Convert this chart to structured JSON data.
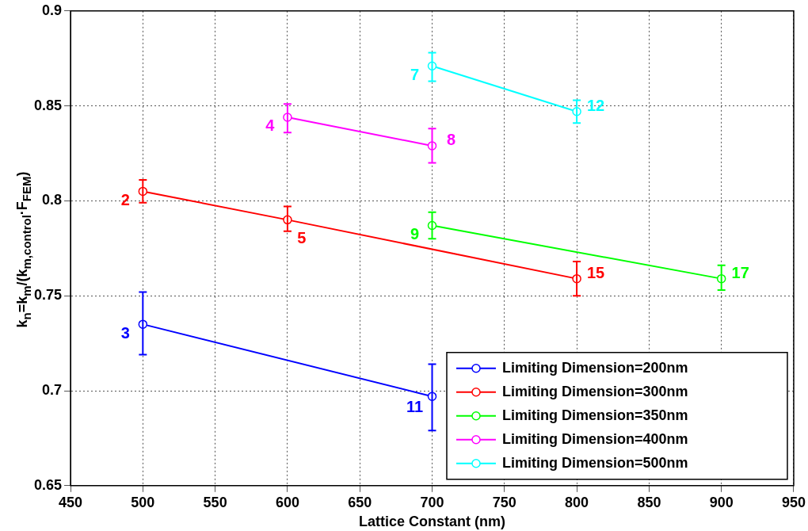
{
  "chart_data": {
    "type": "line",
    "xlabel": "Lattice Constant (nm)",
    "ylabel": "k$_{n}$=k$_{m}$/(k$_{m,control}$·F$_{FEM}$)",
    "xlim": [
      450,
      950
    ],
    "xticks": [
      450,
      500,
      550,
      600,
      650,
      700,
      750,
      800,
      850,
      900,
      950
    ],
    "ylim": [
      0.65,
      0.9
    ],
    "yticks": [
      0.65,
      0.7,
      0.75,
      0.8,
      0.85,
      0.9
    ],
    "grid": true,
    "legend": "bottom right",
    "marker": "circle",
    "line_style": "solid",
    "series": [
      {
        "name": "Limiting Dimension=200nm",
        "color": "#0000ff",
        "x": [
          500,
          700
        ],
        "values": [
          0.735,
          0.697
        ],
        "errors": [
          [
            0.719,
            0.752
          ],
          [
            0.679,
            0.714
          ]
        ]
      },
      {
        "name": "Limiting Dimension=300nm",
        "color": "#ff0000",
        "x": [
          500,
          600,
          800
        ],
        "values": [
          0.805,
          0.79,
          0.759
        ],
        "errors": [
          [
            0.799,
            0.811
          ],
          [
            0.784,
            0.797
          ],
          [
            0.75,
            0.768
          ]
        ]
      },
      {
        "name": "Limiting Dimension=350nm",
        "color": "#00ff00",
        "x": [
          700,
          900
        ],
        "values": [
          0.787,
          0.759
        ],
        "errors": [
          [
            0.78,
            0.794
          ],
          [
            0.753,
            0.766
          ]
        ]
      },
      {
        "name": "Limiting Dimension=400nm",
        "color": "#ff00ff",
        "x": [
          600,
          700
        ],
        "values": [
          0.844,
          0.829
        ],
        "errors": [
          [
            0.836,
            0.851
          ],
          [
            0.82,
            0.838
          ]
        ]
      },
      {
        "name": "Limiting Dimension=500nm",
        "color": "#00ffff",
        "x": [
          700,
          800
        ],
        "values": [
          0.871,
          0.847
        ],
        "errors": [
          [
            0.863,
            0.878
          ],
          [
            0.841,
            0.853
          ]
        ]
      }
    ],
    "annotations": [
      {
        "text": "3",
        "x": 500,
        "y": 0.735
      },
      {
        "text": "11",
        "x": 700,
        "y": 0.697
      },
      {
        "text": "2",
        "x": 500,
        "y": 0.805
      },
      {
        "text": "5",
        "x": 600,
        "y": 0.79
      },
      {
        "text": "15",
        "x": 800,
        "y": 0.759
      },
      {
        "text": "9",
        "x": 700,
        "y": 0.787
      },
      {
        "text": "17",
        "x": 900,
        "y": 0.759
      },
      {
        "text": "4",
        "x": 600,
        "y": 0.844
      },
      {
        "text": "8",
        "x": 700,
        "y": 0.829
      },
      {
        "text": "7",
        "x": 700,
        "y": 0.871
      },
      {
        "text": "12",
        "x": 800,
        "y": 0.847
      }
    ]
  }
}
